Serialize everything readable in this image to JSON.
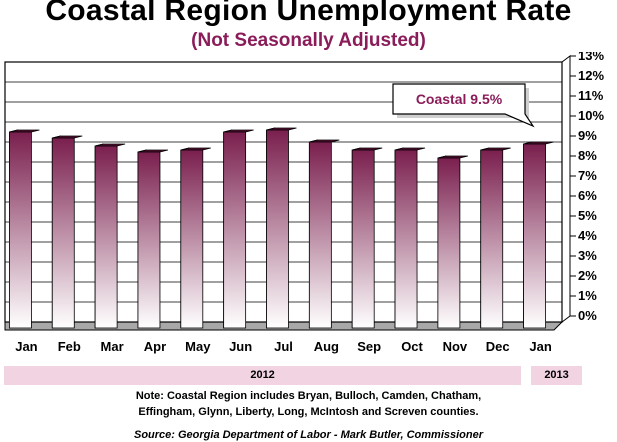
{
  "colors": {
    "bar_top": "#7a1f4e",
    "bar_bottom": "#ffffff",
    "accent": "#8b1c5a"
  },
  "chart_data": {
    "type": "bar",
    "title": "Coastal Region Unemployment Rate",
    "subtitle": "(Not Seasonally Adjusted)",
    "categories": [
      "Jan",
      "Feb",
      "Mar",
      "Apr",
      "May",
      "Jun",
      "Jul",
      "Aug",
      "Sep",
      "Oct",
      "Nov",
      "Dec",
      "Jan"
    ],
    "series": [
      {
        "values": [
          9.6,
          9.3,
          8.9,
          8.6,
          8.7,
          9.6,
          9.7,
          9.1,
          8.7,
          8.7,
          8.3,
          8.7,
          9.0
        ]
      }
    ],
    "ylim": [
      0,
      13
    ],
    "yticks": [
      "0%",
      "1%",
      "2%",
      "3%",
      "4%",
      "5%",
      "6%",
      "7%",
      "8%",
      "9%",
      "10%",
      "11%",
      "12%",
      "13%"
    ],
    "grid": true,
    "annotation": "Coastal 9.5%",
    "years": [
      {
        "label": "2012",
        "categories": 12
      },
      {
        "label": "2013",
        "categories": 1
      }
    ]
  },
  "note_line1": "Note: Coastal Region includes Bryan, Bulloch, Camden, Chatham,",
  "note_line2": "Effingham, Glynn, Liberty, Long, McIntosh and Screven counties.",
  "source": "Source: Georgia Department of Labor - Mark Butler, Commissioner"
}
